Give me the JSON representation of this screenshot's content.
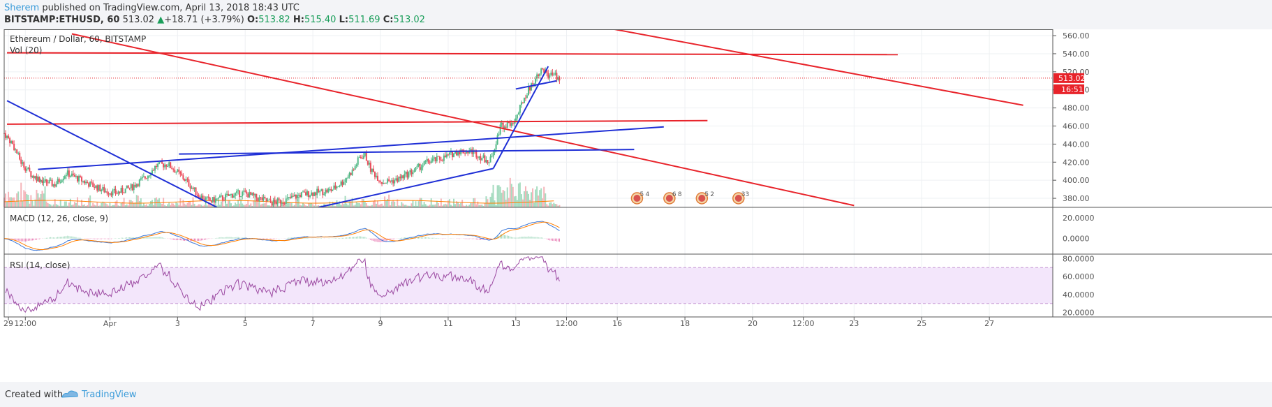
{
  "header": {
    "author": "Sherem",
    "published_text": " published on TradingView.com, April 13, 2018 18:43 UTC",
    "symbol": "BITSTAMP:ETHUSD, 60",
    "last": "513.02",
    "change": "+18.71 (+3.79%)",
    "o_label": "O:",
    "o": "513.82",
    "h_label": "H:",
    "h": "515.40",
    "l_label": "L:",
    "l": "511.69",
    "c_label": "C:",
    "c": "513.02"
  },
  "footer": {
    "created_with": "Created with",
    "brand": "TradingView"
  },
  "colors": {
    "up": "#53b987",
    "down": "#eb4d5c",
    "trend_blue": "#1f2fd6",
    "trend_red": "#e8232a",
    "macd": "#3c78d8",
    "signal": "#ff7f00",
    "rsi": "#9b49a1",
    "rsi_band": "#f3e6fb",
    "vol_up": "#a6dcc0",
    "vol_down": "#f5b4b9"
  },
  "chart_data": [
    {
      "type": "candlestick",
      "title": "Ethereum / Dollar, 60, BITSTAMP",
      "volume_label": "Vol (20)",
      "ylim": [
        370,
        567
      ],
      "y_ticks": [
        "560.00",
        "540.00",
        "520.00",
        "500.00",
        "480.00",
        "460.00",
        "440.00",
        "420.00",
        "400.00",
        "380.00"
      ],
      "price_badge": "513.02",
      "countdown_badge": "16:51",
      "events": [
        {
          "icon": "us-flag",
          "label": "5",
          "count": "4"
        },
        {
          "icon": "us-flag",
          "label": "6",
          "count": "8"
        },
        {
          "icon": "us-flag",
          "label": "5",
          "count": "2"
        },
        {
          "icon": "us-flag",
          "label": "33",
          "count": ""
        }
      ],
      "x_ticks": [
        "29",
        "12:00",
        "Apr",
        "3",
        "5",
        "7",
        "9",
        "11",
        "13",
        "12:00",
        "16",
        "18",
        "20",
        "12:00",
        "23",
        "25",
        "27"
      ],
      "trend_lines": [
        {
          "color": "red",
          "from": [
            "Mar 30 21:00",
            562
          ],
          "to": [
            "Apr 23 00:00",
            372
          ]
        },
        {
          "color": "red",
          "from": [
            "Apr 15 22:00",
            567
          ],
          "to": [
            "Apr 28 00:00",
            483
          ]
        },
        {
          "color": "red",
          "from": [
            "Mar 28 23:00",
            541
          ],
          "to": [
            "Apr 24 07:00",
            539
          ]
        },
        {
          "color": "red",
          "from": [
            "Mar 28 23:00",
            462
          ],
          "to": [
            "Apr 18 16:00",
            466
          ]
        },
        {
          "color": "blue",
          "from": [
            "Mar 28 23:00",
            488
          ],
          "to": [
            "Apr 4 04:00",
            370
          ]
        },
        {
          "color": "blue",
          "from": [
            "Mar 29 21:00",
            412
          ],
          "to": [
            "Apr 17 09:00",
            459
          ]
        },
        {
          "color": "blue",
          "from": [
            "Apr 3 01:00",
            429
          ],
          "to": [
            "Apr 16 12:00",
            434
          ]
        },
        {
          "color": "blue",
          "from": [
            "Apr 7 04:00",
            370
          ],
          "to": [
            "Apr 12 08:00",
            413
          ]
        },
        {
          "color": "blue",
          "from": [
            "Apr 12 08:00",
            413
          ],
          "to": [
            "Apr 13 23:00",
            526
          ]
        },
        {
          "color": "blue",
          "from": [
            "Apr 13 00:00",
            501
          ],
          "to": [
            "Apr 14 05:00",
            510
          ]
        }
      ]
    },
    {
      "type": "line",
      "title": "MACD (12, 26, close, 9)",
      "y_ticks": [
        "20.0000",
        "0.0000"
      ],
      "series": [
        {
          "color": "blue"
        },
        {
          "color": "orange"
        }
      ]
    },
    {
      "type": "line",
      "title": "RSI (14, close)",
      "y_ticks": [
        "80.0000",
        "60.0000",
        "40.0000",
        "20.0000"
      ],
      "band": [
        30,
        70
      ],
      "series": [
        {
          "color": "purple"
        }
      ]
    }
  ]
}
